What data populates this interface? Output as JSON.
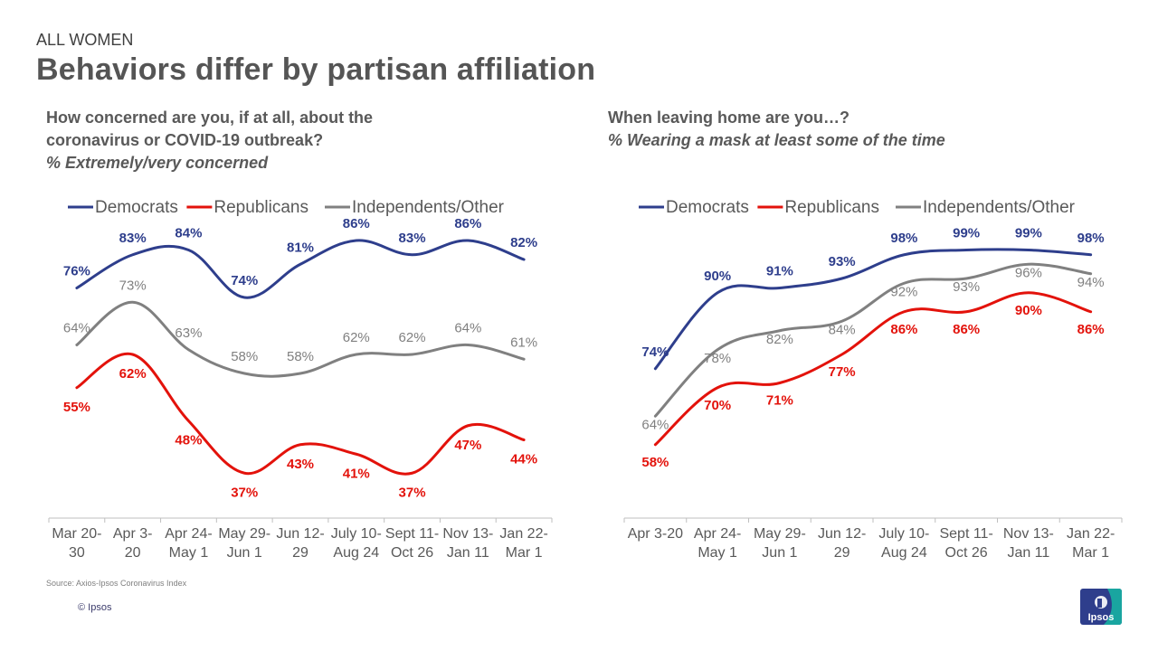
{
  "header": {
    "eyebrow": "ALL WOMEN",
    "title": "Behaviors differ by partisan affiliation"
  },
  "colors": {
    "democrats": "#2E3E8C",
    "republicans": "#E3120B",
    "independents": "#808080"
  },
  "footer": {
    "source": "Source: Axios-Ipsos Coronavirus Index",
    "copyright": "© Ipsos",
    "logo_text": "Ipsos"
  },
  "chart_data": [
    {
      "type": "line",
      "question_lines": [
        "How concerned are you, if at all, about the",
        "coronavirus or COVID-19  outbreak?"
      ],
      "subtitle": "% Extremely/very concerned",
      "categories": [
        [
          "Mar 20-",
          "30"
        ],
        [
          "Apr 3-",
          "20"
        ],
        [
          "Apr 24-",
          "May 1"
        ],
        [
          "May 29-",
          "Jun 1"
        ],
        [
          "Jun 12-",
          "29"
        ],
        [
          "July 10-",
          "Aug 24"
        ],
        [
          "Sept 11-",
          "Oct 26"
        ],
        [
          "Nov 13-",
          "Jan 11"
        ],
        [
          "Jan 22-",
          "Mar 1"
        ]
      ],
      "legend": [
        "Democrats",
        "Republicans",
        "Independents/Other"
      ],
      "series": [
        {
          "name": "Democrats",
          "values": [
            76,
            83,
            84,
            74,
            81,
            86,
            83,
            86,
            82
          ]
        },
        {
          "name": "Republicans",
          "values": [
            55,
            62,
            48,
            37,
            43,
            41,
            37,
            47,
            44
          ]
        },
        {
          "name": "Independents/Other",
          "values": [
            64,
            73,
            63,
            58,
            58,
            62,
            62,
            64,
            61
          ]
        }
      ],
      "ylim": [
        30,
        90
      ]
    },
    {
      "type": "line",
      "question_lines": [
        "When leaving home are you…?"
      ],
      "subtitle": "% Wearing a mask at least some of the time",
      "categories": [
        [
          "Apr 3-20"
        ],
        [
          "Apr 24-",
          "May 1"
        ],
        [
          "May 29-",
          "Jun 1"
        ],
        [
          "Jun 12-",
          "29"
        ],
        [
          "July 10-",
          "Aug 24"
        ],
        [
          "Sept 11-",
          "Oct 26"
        ],
        [
          "Nov 13-",
          "Jan 11"
        ],
        [
          "Jan 22-",
          "Mar 1"
        ]
      ],
      "legend": [
        "Democrats",
        "Republicans",
        "Independents/Other"
      ],
      "series": [
        {
          "name": "Democrats",
          "values": [
            74,
            90,
            91,
            93,
            98,
            99,
            99,
            98
          ]
        },
        {
          "name": "Republicans",
          "values": [
            58,
            70,
            71,
            77,
            86,
            86,
            90,
            86
          ]
        },
        {
          "name": "Independents/Other",
          "values": [
            64,
            78,
            82,
            84,
            92,
            93,
            96,
            94
          ]
        }
      ],
      "ylim": [
        45,
        105
      ]
    }
  ]
}
